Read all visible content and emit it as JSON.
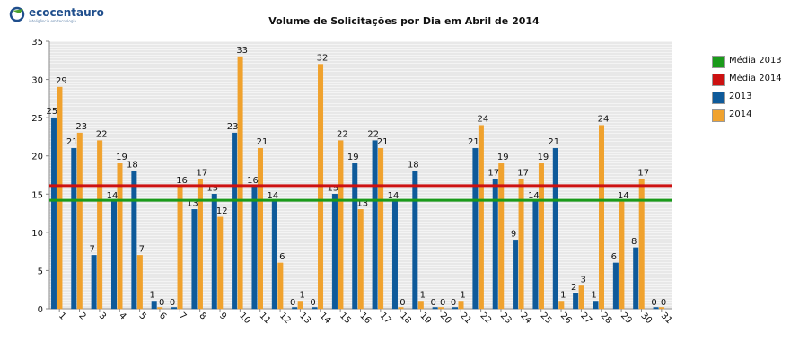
{
  "logo": {
    "name": "ecocentauro",
    "tagline": "inteligência em tecnologia",
    "color": "#1f4e8c"
  },
  "colors": {
    "s2013": "#0e5a9a",
    "s2014": "#f0a22e",
    "avg2013": "#1a9a1a",
    "avg2014": "#cc1111"
  },
  "legend": [
    {
      "label": "Média 2013",
      "color": "#1a9a1a"
    },
    {
      "label": "Média 2014",
      "color": "#cc1111"
    },
    {
      "label": "2013",
      "color": "#0e5a9a"
    },
    {
      "label": "2014",
      "color": "#f0a22e"
    }
  ],
  "chart_data": {
    "type": "bar",
    "title": "Volume de Solicitações por Dia em Abril de 2014",
    "xlabel": "",
    "ylabel": "",
    "ylim": [
      0,
      35
    ],
    "yticks": [
      0,
      5,
      10,
      15,
      20,
      25,
      30,
      35
    ],
    "grid": true,
    "legend_position": "right",
    "categories": [
      "1",
      "2",
      "3",
      "4",
      "5",
      "6",
      "7",
      "8",
      "9",
      "10",
      "11",
      "12",
      "13",
      "14",
      "15",
      "16",
      "17",
      "18",
      "19",
      "20",
      "21",
      "22",
      "23",
      "24",
      "25",
      "26",
      "27",
      "28",
      "29",
      "30",
      "31"
    ],
    "series": [
      {
        "name": "2013",
        "values": [
          25,
          21,
          7,
          14,
          18,
          1,
          0,
          13,
          15,
          23,
          16,
          14,
          0,
          0,
          15,
          19,
          22,
          14,
          18,
          0,
          0,
          21,
          17,
          9,
          14,
          21,
          2,
          1,
          6,
          8,
          0
        ]
      },
      {
        "name": "2014",
        "values": [
          29,
          23,
          22,
          19,
          7,
          0,
          16,
          17,
          12,
          33,
          21,
          6,
          1,
          32,
          22,
          13,
          21,
          0,
          1,
          0,
          1,
          24,
          19,
          17,
          19,
          1,
          3,
          24,
          14,
          17,
          0
        ]
      }
    ],
    "reference_lines": [
      {
        "name": "Média 2013",
        "value": 14.2
      },
      {
        "name": "Média 2014",
        "value": 16.1
      }
    ]
  }
}
